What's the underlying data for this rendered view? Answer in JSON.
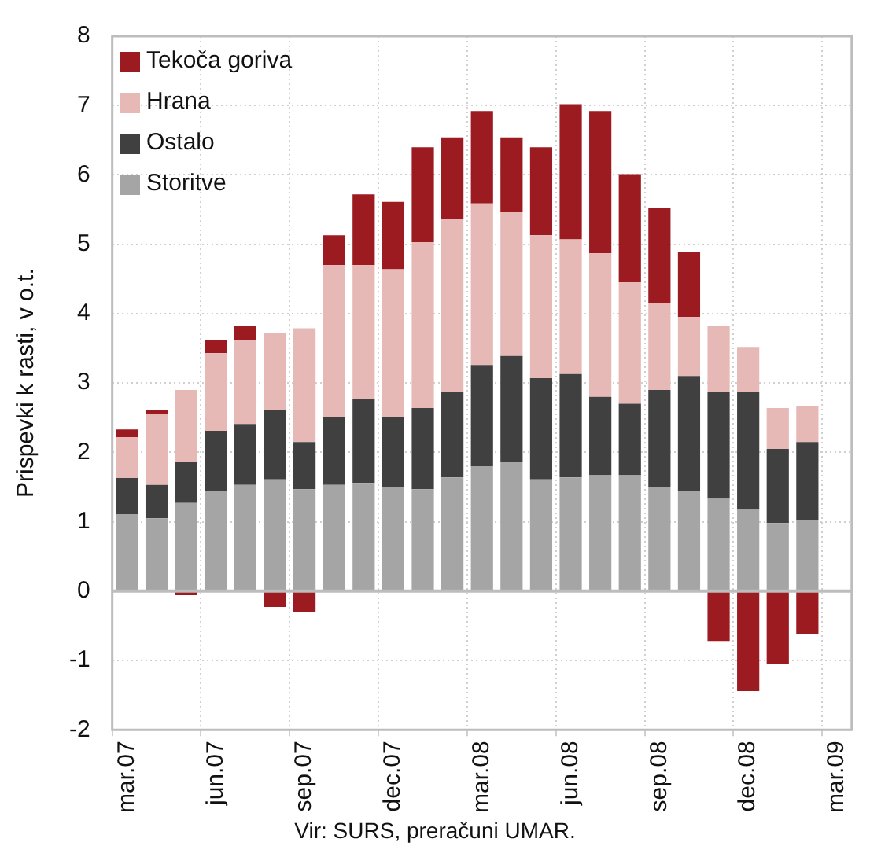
{
  "chart_data": {
    "type": "bar",
    "stacked": true,
    "ylabel": "Prispevki k rasti, v o.t.",
    "annotations": [
      "Vir: SURS, preračuni UMAR."
    ],
    "categories": [
      "mar.07",
      null,
      null,
      "jun.07",
      null,
      null,
      "sep.07",
      null,
      null,
      "dec.07",
      null,
      null,
      "mar.08",
      null,
      null,
      "jun.08",
      null,
      null,
      "sep.08",
      null,
      null,
      "dec.08",
      null,
      null,
      "mar.09"
    ],
    "ylim": [
      -2,
      8
    ],
    "yticks": [
      -2,
      -1,
      0,
      1,
      2,
      3,
      4,
      5,
      6,
      7,
      8
    ],
    "grid": true,
    "legend": "top left",
    "series": [
      {
        "name": "Storitve",
        "color": "#a5a5a5",
        "values": [
          1.11,
          1.05,
          1.27,
          1.44,
          1.53,
          1.61,
          1.47,
          1.53,
          1.56,
          1.5,
          1.47,
          1.64,
          1.8,
          1.86,
          1.61,
          1.64,
          1.67,
          1.67,
          1.5,
          1.44,
          1.33,
          1.17,
          0.98,
          1.02,
          null
        ]
      },
      {
        "name": "Ostalo",
        "color": "#404040",
        "values": [
          0.52,
          0.48,
          0.59,
          0.87,
          0.88,
          1.0,
          0.68,
          0.98,
          1.21,
          1.01,
          1.17,
          1.23,
          1.46,
          1.53,
          1.46,
          1.49,
          1.13,
          1.03,
          1.4,
          1.66,
          1.54,
          1.7,
          1.07,
          1.13,
          null
        ]
      },
      {
        "name": "Hrana",
        "color": "#e6b8b6",
        "values": [
          0.59,
          1.02,
          1.04,
          1.12,
          1.21,
          1.11,
          1.64,
          2.19,
          1.93,
          2.13,
          2.39,
          2.49,
          2.33,
          2.07,
          2.06,
          1.94,
          2.07,
          1.75,
          1.25,
          0.85,
          0.95,
          0.65,
          0.59,
          0.52,
          null
        ]
      },
      {
        "name": "Tekoča goriva",
        "color": "#9b1b20",
        "values": [
          0.11,
          0.06,
          -0.06,
          0.19,
          0.2,
          -0.23,
          -0.3,
          0.43,
          1.02,
          0.97,
          1.37,
          1.18,
          1.33,
          1.08,
          1.27,
          1.95,
          2.05,
          1.56,
          1.37,
          0.94,
          -0.72,
          -1.44,
          -1.05,
          -0.62,
          null
        ]
      }
    ]
  }
}
